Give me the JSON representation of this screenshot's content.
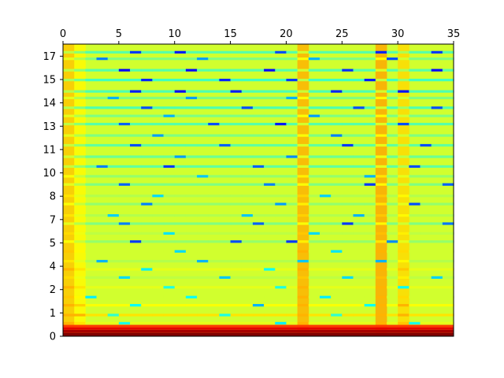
{
  "chart_data": {
    "type": "heatmap",
    "colormap": "jet",
    "title": "",
    "xlabel": "",
    "ylabel": "",
    "xlim": [
      0,
      35
    ],
    "x_axis_position": "top",
    "x_ticks": [
      "0",
      "5",
      "10",
      "15",
      "20",
      "25",
      "30",
      "35"
    ],
    "y_ticks": [
      "0",
      "1",
      "2",
      "4",
      "5",
      "7",
      "8",
      "10",
      "11",
      "13",
      "14",
      "15",
      "17"
    ],
    "grid": false,
    "legend": "none",
    "time_frames": 35,
    "bands": [
      {
        "y": 17.4,
        "value": 0.46,
        "dips": [
          [
            6,
            0.18
          ],
          [
            10,
            0.15
          ],
          [
            19,
            0.2
          ],
          [
            28,
            0.16
          ],
          [
            33,
            0.18
          ]
        ]
      },
      {
        "y": 17.0,
        "value": 0.5,
        "dips": [
          [
            3,
            0.25
          ],
          [
            12,
            0.28
          ],
          [
            22,
            0.3
          ],
          [
            29,
            0.2
          ]
        ]
      },
      {
        "y": 16.3,
        "value": 0.46,
        "dips": [
          [
            5,
            0.12
          ],
          [
            11,
            0.13
          ],
          [
            18,
            0.13
          ],
          [
            25,
            0.17
          ],
          [
            33,
            0.13
          ]
        ]
      },
      {
        "y": 15.7,
        "value": 0.44,
        "dips": [
          [
            7,
            0.16
          ],
          [
            14,
            0.16
          ],
          [
            20,
            0.18
          ],
          [
            27,
            0.15
          ]
        ]
      },
      {
        "y": 15.0,
        "value": 0.45,
        "dips": [
          [
            6,
            0.15
          ],
          [
            10,
            0.13
          ],
          [
            15,
            0.15
          ],
          [
            24,
            0.16
          ],
          [
            30,
            0.14
          ]
        ]
      },
      {
        "y": 14.6,
        "value": 0.5,
        "dips": [
          [
            4,
            0.3
          ],
          [
            11,
            0.28
          ],
          [
            20,
            0.3
          ]
        ]
      },
      {
        "y": 14.0,
        "value": 0.45,
        "dips": [
          [
            7,
            0.2
          ],
          [
            16,
            0.2
          ],
          [
            26,
            0.2
          ],
          [
            33,
            0.2
          ]
        ]
      },
      {
        "y": 13.5,
        "value": 0.5,
        "dips": [
          [
            9,
            0.3
          ],
          [
            22,
            0.28
          ]
        ]
      },
      {
        "y": 13.0,
        "value": 0.46,
        "dips": [
          [
            5,
            0.22
          ],
          [
            13,
            0.2
          ],
          [
            19,
            0.15
          ],
          [
            30,
            0.2
          ]
        ]
      },
      {
        "y": 12.3,
        "value": 0.5,
        "dips": [
          [
            8,
            0.28
          ],
          [
            24,
            0.25
          ]
        ]
      },
      {
        "y": 11.7,
        "value": 0.47,
        "dips": [
          [
            6,
            0.2
          ],
          [
            14,
            0.22
          ],
          [
            25,
            0.18
          ],
          [
            32,
            0.2
          ]
        ]
      },
      {
        "y": 11.0,
        "value": 0.48,
        "dips": [
          [
            10,
            0.28
          ],
          [
            20,
            0.26
          ]
        ]
      },
      {
        "y": 10.4,
        "value": 0.47,
        "dips": [
          [
            3,
            0.25
          ],
          [
            9,
            0.18
          ],
          [
            17,
            0.22
          ],
          [
            31,
            0.2
          ]
        ]
      },
      {
        "y": 9.8,
        "value": 0.52,
        "dips": [
          [
            12,
            0.32
          ],
          [
            27,
            0.3
          ]
        ]
      },
      {
        "y": 9.3,
        "value": 0.5,
        "dips": [
          [
            5,
            0.22
          ],
          [
            18,
            0.25
          ],
          [
            27,
            0.18
          ],
          [
            34,
            0.22
          ]
        ]
      },
      {
        "y": 8.6,
        "value": 0.55,
        "dips": [
          [
            8,
            0.34
          ],
          [
            23,
            0.33
          ]
        ]
      },
      {
        "y": 8.1,
        "value": 0.52,
        "dips": [
          [
            7,
            0.25
          ],
          [
            19,
            0.28
          ],
          [
            31,
            0.2
          ]
        ]
      },
      {
        "y": 7.4,
        "value": 0.55,
        "dips": [
          [
            4,
            0.33
          ],
          [
            16,
            0.32
          ],
          [
            26,
            0.3
          ]
        ]
      },
      {
        "y": 6.9,
        "value": 0.5,
        "dips": [
          [
            5,
            0.25
          ],
          [
            17,
            0.22
          ],
          [
            25,
            0.18
          ],
          [
            34,
            0.24
          ]
        ]
      },
      {
        "y": 6.3,
        "value": 0.56,
        "dips": [
          [
            9,
            0.35
          ],
          [
            22,
            0.34
          ]
        ]
      },
      {
        "y": 5.8,
        "value": 0.52,
        "dips": [
          [
            6,
            0.18
          ],
          [
            15,
            0.2
          ],
          [
            20,
            0.18
          ],
          [
            29,
            0.26
          ]
        ]
      },
      {
        "y": 5.2,
        "value": 0.58,
        "dips": [
          [
            10,
            0.34
          ],
          [
            24,
            0.35
          ]
        ]
      },
      {
        "y": 4.6,
        "value": 0.55,
        "dips": [
          [
            3,
            0.3
          ],
          [
            12,
            0.3
          ],
          [
            21,
            0.32
          ],
          [
            28,
            0.3
          ]
        ]
      },
      {
        "y": 4.1,
        "value": 0.6,
        "dips": [
          [
            7,
            0.36
          ],
          [
            18,
            0.38
          ]
        ]
      },
      {
        "y": 3.6,
        "value": 0.56,
        "dips": [
          [
            5,
            0.34
          ],
          [
            14,
            0.32
          ],
          [
            25,
            0.34
          ],
          [
            33,
            0.33
          ]
        ]
      },
      {
        "y": 3.0,
        "value": 0.6,
        "dips": [
          [
            9,
            0.4
          ],
          [
            19,
            0.4
          ],
          [
            30,
            0.38
          ]
        ]
      },
      {
        "y": 2.4,
        "value": 0.58,
        "dips": [
          [
            2,
            0.36
          ],
          [
            11,
            0.38
          ],
          [
            23,
            0.36
          ]
        ]
      },
      {
        "y": 1.9,
        "value": 0.62,
        "dips": [
          [
            6,
            0.38
          ],
          [
            17,
            0.3
          ],
          [
            27,
            0.38
          ]
        ]
      },
      {
        "y": 1.3,
        "value": 0.65,
        "dips": [
          [
            4,
            0.42
          ],
          [
            14,
            0.4
          ],
          [
            24,
            0.42
          ]
        ]
      },
      {
        "y": 0.8,
        "value": 0.6,
        "dips": [
          [
            5,
            0.4
          ],
          [
            19,
            0.36
          ],
          [
            31,
            0.4
          ]
        ]
      }
    ],
    "bright_columns": [
      {
        "x": 0,
        "strength": 0.1
      },
      {
        "x": 1,
        "strength": 0.05
      },
      {
        "x": 21,
        "strength": 0.12
      },
      {
        "x": 28,
        "strength": 0.13
      },
      {
        "x": 30,
        "strength": 0.08
      }
    ],
    "low_frequency": [
      {
        "y0": 0.0,
        "y1": 0.2,
        "value": 1.0
      },
      {
        "y0": 0.2,
        "y1": 0.4,
        "value": 0.96
      },
      {
        "y0": 0.4,
        "y1": 0.55,
        "value": 0.9
      },
      {
        "y0": 0.55,
        "y1": 0.7,
        "value": 0.82
      }
    ]
  }
}
